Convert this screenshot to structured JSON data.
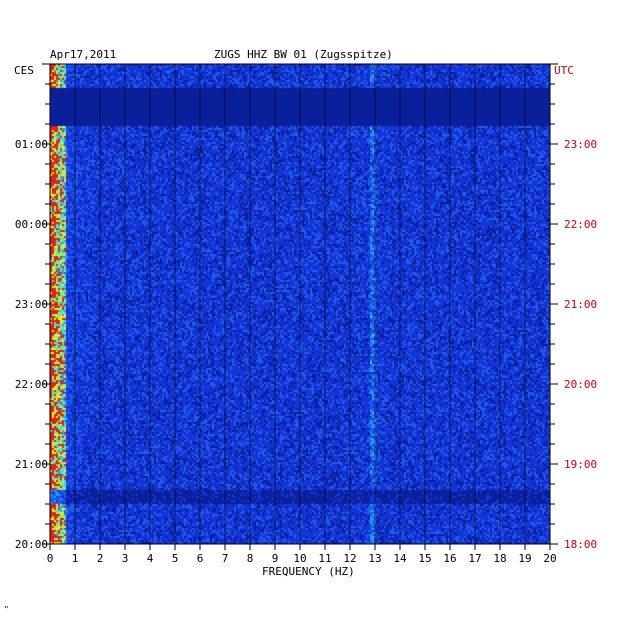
{
  "header": {
    "date": "Apr17,2011",
    "station": "ZUGS HHZ BW 01 (Zugsspitze)",
    "left_tz": "CES",
    "right_tz": "UTC"
  },
  "footer": {
    "mark": "\""
  },
  "chart_data": {
    "type": "heatmap",
    "title": "ZUGS HHZ BW 01 (Zugsspitze)",
    "xlabel": "FREQUENCY (HZ)",
    "ylabel_left": "CES",
    "ylabel_right": "UTC",
    "x_range": [
      0,
      20
    ],
    "x_ticks": [
      "0",
      "1",
      "2",
      "3",
      "4",
      "5",
      "6",
      "7",
      "8",
      "9",
      "10",
      "11",
      "12",
      "13",
      "14",
      "15",
      "16",
      "17",
      "18",
      "19",
      "20"
    ],
    "y_ticks_left": [
      "01:00",
      "00:00",
      "23:00",
      "22:00",
      "21:00",
      "20:00"
    ],
    "y_ticks_right": [
      "23:00",
      "22:00",
      "21:00",
      "20:00",
      "19:00",
      "18:00"
    ],
    "colors": {
      "background": "#1a2ccc",
      "quiet_band": "#0a1f8f",
      "accent_right": "#cc0000"
    }
  }
}
